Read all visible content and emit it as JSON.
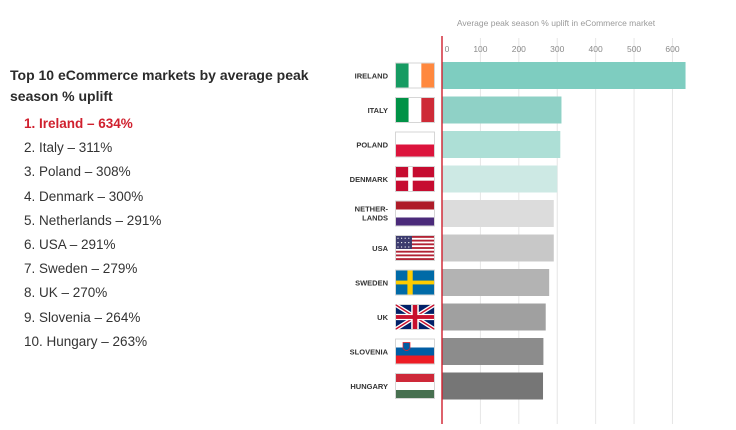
{
  "sidebar": {
    "title": "Top 10 eCommerce markets by average peak season % uplift",
    "items": [
      "1. Ireland – 634%",
      "2. Italy – 311%",
      "3. Poland – 308%",
      "4. Denmark – 300%",
      "5. Netherlands – 291%",
      "6. USA – 291%",
      "7. Sweden – 279%",
      "8. UK – 270%",
      "9. Slovenia – 264%",
      "10. Hungary – 263%"
    ]
  },
  "chart_data": {
    "type": "bar",
    "orientation": "horizontal",
    "title": "Average peak season % uplift in eCommerce market",
    "categories": [
      "IRELAND",
      "ITALY",
      "POLAND",
      "DENMARK",
      "NETHER-\nLANDS",
      "USA",
      "SWEDEN",
      "UK",
      "SLOVENIA",
      "HUNGARY"
    ],
    "values": [
      634,
      311,
      308,
      300,
      291,
      291,
      279,
      270,
      264,
      263
    ],
    "xlim": [
      0,
      650
    ],
    "xticks": [
      0,
      100,
      200,
      300,
      400,
      500,
      600
    ],
    "grid": true,
    "bar_colors": [
      "#7ecdc0",
      "#8fd1c6",
      "#addfd6",
      "#cde9e4",
      "#dcdcdc",
      "#c8c8c8",
      "#b3b3b3",
      "#a0a0a0",
      "#8c8c8c",
      "#767676"
    ],
    "flags": [
      "ireland-flag",
      "italy-flag",
      "poland-flag",
      "denmark-flag",
      "netherlands-flag",
      "usa-flag",
      "sweden-flag",
      "uk-flag",
      "slovenia-flag",
      "hungary-flag"
    ],
    "axis_color": "#d0202e",
    "highlight_color": "#d0202e"
  }
}
